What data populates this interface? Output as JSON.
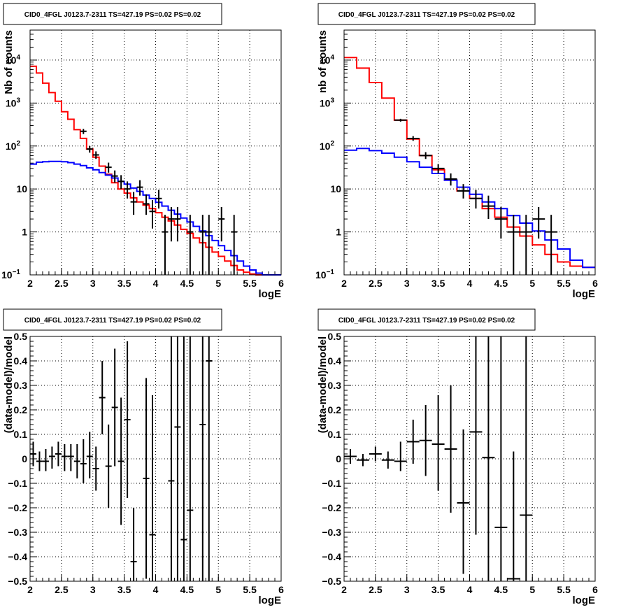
{
  "colors": {
    "total_model": "#ff0000",
    "source_model": "#0000ff",
    "data": "#000000"
  },
  "chart_data": [
    {
      "type": "line",
      "title": "CID0_4FGL J0123.7-2311 TS=427.19 PS=0.02 PS=0.02",
      "xlabel": "logE",
      "ylabel": "Nb of counts",
      "log_y": true,
      "xlim": [
        2,
        6
      ],
      "ylim": [
        0.1,
        50000
      ],
      "xticks": [
        "2",
        "2.5",
        "3",
        "3.5",
        "4",
        "4.5",
        "5",
        "5.5",
        "6"
      ],
      "yticks": [
        {
          "v": 0.1,
          "base": "10",
          "exp": "−1"
        },
        {
          "v": 1,
          "base": "1",
          "exp": ""
        },
        {
          "v": 10,
          "base": "10",
          "exp": ""
        },
        {
          "v": 100,
          "base": "10",
          "exp": "2"
        },
        {
          "v": 1000,
          "base": "10",
          "exp": "3"
        },
        {
          "v": 10000,
          "base": "10",
          "exp": "4"
        }
      ],
      "bin_width": 0.1,
      "series": [
        {
          "role": "total",
          "color": "#ff0000",
          "x_start": 2.0,
          "values": [
            7200,
            5000,
            2900,
            1750,
            1100,
            630,
            420,
            240,
            150,
            85,
            55,
            34,
            22,
            14,
            10,
            8,
            6.2,
            5,
            4.2,
            3.5,
            2.8,
            2.2,
            1.8,
            1.45,
            1.15,
            0.92,
            0.72,
            0.56,
            0.44,
            0.34,
            0.27,
            0.21,
            0.165,
            0.13,
            0.115,
            0.105,
            0.1,
            0.095,
            0.09,
            0.085
          ]
        },
        {
          "role": "source",
          "color": "#0000ff",
          "x_start": 2.0,
          "values": [
            38,
            42,
            43,
            44,
            44,
            43,
            41,
            38,
            35,
            31,
            28,
            24,
            21,
            18,
            15,
            13,
            10.5,
            8.8,
            7.2,
            6,
            4.9,
            4,
            3.2,
            2.6,
            2.1,
            1.7,
            1.35,
            1.05,
            0.82,
            0.63,
            0.48,
            0.37,
            0.28,
            0.21,
            0.16,
            0.13,
            0.11,
            0.1,
            0.1,
            0.1
          ]
        }
      ],
      "points": [
        {
          "x": 2.85,
          "y": 220,
          "lo": 190,
          "hi": 250
        },
        {
          "x": 2.95,
          "y": 85,
          "lo": 70,
          "hi": 100
        },
        {
          "x": 3.05,
          "y": 62,
          "lo": 50,
          "hi": 75
        },
        {
          "x": 3.25,
          "y": 32,
          "lo": 24,
          "hi": 41
        },
        {
          "x": 3.35,
          "y": 20,
          "lo": 14,
          "hi": 27
        },
        {
          "x": 3.45,
          "y": 15,
          "lo": 10,
          "hi": 21
        },
        {
          "x": 3.55,
          "y": 10,
          "lo": 6,
          "hi": 15
        },
        {
          "x": 3.65,
          "y": 5,
          "lo": 2.5,
          "hi": 8.5
        },
        {
          "x": 3.75,
          "y": 11,
          "lo": 7,
          "hi": 16
        },
        {
          "x": 3.85,
          "y": 4.5,
          "lo": 2.5,
          "hi": 7.5
        },
        {
          "x": 3.95,
          "y": 3,
          "lo": 1.2,
          "hi": 5.5
        },
        {
          "x": 4.05,
          "y": 6,
          "lo": 3.5,
          "hi": 9.5
        },
        {
          "x": 4.15,
          "y": 1,
          "lo": 0.1,
          "hi": 2.5
        },
        {
          "x": 4.25,
          "y": 2,
          "lo": 0.6,
          "hi": 3.8
        },
        {
          "x": 4.35,
          "y": 2,
          "lo": 0.6,
          "hi": 3.8
        },
        {
          "x": 4.55,
          "y": 1,
          "lo": 0.1,
          "hi": 2.5
        },
        {
          "x": 4.75,
          "y": 1,
          "lo": 0.1,
          "hi": 2.5
        },
        {
          "x": 4.85,
          "y": 1,
          "lo": 0.1,
          "hi": 2.5
        },
        {
          "x": 5.05,
          "y": 2,
          "lo": 0.6,
          "hi": 3.8
        },
        {
          "x": 5.25,
          "y": 1,
          "lo": 0.1,
          "hi": 2.5
        }
      ]
    },
    {
      "type": "line",
      "title": "CID0_4FGL J0123.7-2311 TS=427.19 PS=0.02 PS=0.02",
      "xlabel": "logE",
      "ylabel": "nb of counts",
      "log_y": true,
      "xlim": [
        2,
        6
      ],
      "ylim": [
        0.1,
        50000
      ],
      "xticks": [
        "2",
        "2.5",
        "3",
        "3.5",
        "4",
        "4.5",
        "5",
        "5.5",
        "6"
      ],
      "yticks": [
        {
          "v": 0.1,
          "base": "10",
          "exp": "−1"
        },
        {
          "v": 1,
          "base": "1",
          "exp": ""
        },
        {
          "v": 10,
          "base": "10",
          "exp": ""
        },
        {
          "v": 100,
          "base": "10",
          "exp": "2"
        },
        {
          "v": 1000,
          "base": "10",
          "exp": "3"
        },
        {
          "v": 10000,
          "base": "10",
          "exp": "4"
        }
      ],
      "bin_width": 0.2,
      "series": [
        {
          "role": "total",
          "color": "#ff0000",
          "x_start": 2.0,
          "values": [
            11500,
            6500,
            3000,
            1300,
            400,
            145,
            60,
            28,
            16,
            9,
            6,
            3.5,
            2.2,
            1.3,
            0.8,
            0.5,
            0.3,
            0.2,
            0.16,
            0.15
          ]
        },
        {
          "role": "source",
          "color": "#0000ff",
          "x_start": 2.0,
          "values": [
            80,
            88,
            78,
            68,
            55,
            43,
            32,
            23,
            16,
            11,
            7.5,
            5,
            3.5,
            2.4,
            1.6,
            1.05,
            0.65,
            0.4,
            0.22,
            0.15
          ]
        }
      ],
      "points": [
        {
          "x": 2.9,
          "y": 400,
          "lo": 370,
          "hi": 430
        },
        {
          "x": 3.1,
          "y": 150,
          "lo": 132,
          "hi": 170
        },
        {
          "x": 3.3,
          "y": 60,
          "lo": 50,
          "hi": 72
        },
        {
          "x": 3.5,
          "y": 30,
          "lo": 23,
          "hi": 38
        },
        {
          "x": 3.7,
          "y": 17,
          "lo": 12,
          "hi": 23
        },
        {
          "x": 3.9,
          "y": 9,
          "lo": 6,
          "hi": 13
        },
        {
          "x": 4.1,
          "y": 6,
          "lo": 3.5,
          "hi": 9.5
        },
        {
          "x": 4.3,
          "y": 4,
          "lo": 2,
          "hi": 7
        },
        {
          "x": 4.5,
          "y": 2,
          "lo": 0.7,
          "hi": 3.8
        },
        {
          "x": 4.7,
          "y": 1,
          "lo": 0.1,
          "hi": 2.5
        },
        {
          "x": 4.9,
          "y": 1,
          "lo": 0.1,
          "hi": 2.5
        },
        {
          "x": 5.1,
          "y": 2,
          "lo": 0.7,
          "hi": 3.8
        },
        {
          "x": 5.3,
          "y": 1,
          "lo": 0.1,
          "hi": 2.5
        }
      ]
    },
    {
      "type": "scatter",
      "title": "CID0_4FGL J0123.7-2311 TS=427.19 PS=0.02 PS=0.02",
      "xlabel": "logE",
      "ylabel": "(data-model)/model",
      "log_y": false,
      "xlim": [
        2,
        6
      ],
      "ylim": [
        -0.5,
        0.5
      ],
      "xticks": [
        "2",
        "2.5",
        "3",
        "3.5",
        "4",
        "4.5",
        "5",
        "5.5",
        "6"
      ],
      "yticks": [
        {
          "v": -0.5,
          "label": "−0.5"
        },
        {
          "v": -0.4,
          "label": "−0.4"
        },
        {
          "v": -0.3,
          "label": "−0.3"
        },
        {
          "v": -0.2,
          "label": "−0.2"
        },
        {
          "v": -0.1,
          "label": "−0.1"
        },
        {
          "v": 0,
          "label": "0"
        },
        {
          "v": 0.1,
          "label": "0.1"
        },
        {
          "v": 0.2,
          "label": "0.2"
        },
        {
          "v": 0.3,
          "label": "0.3"
        },
        {
          "v": 0.4,
          "label": "0.4"
        },
        {
          "v": 0.5,
          "label": "0.5"
        }
      ],
      "bin_width": 0.1,
      "points": [
        {
          "x": 2.05,
          "y": 0.02,
          "lo": -0.03,
          "hi": 0.07
        },
        {
          "x": 2.15,
          "y": -0.01,
          "lo": -0.05,
          "hi": 0.03
        },
        {
          "x": 2.25,
          "y": -0.01,
          "lo": -0.05,
          "hi": 0.04
        },
        {
          "x": 2.35,
          "y": 0.01,
          "lo": -0.04,
          "hi": 0.05
        },
        {
          "x": 2.45,
          "y": 0.02,
          "lo": -0.03,
          "hi": 0.07
        },
        {
          "x": 2.55,
          "y": 0.01,
          "lo": -0.05,
          "hi": 0.06
        },
        {
          "x": 2.65,
          "y": 0.01,
          "lo": -0.05,
          "hi": 0.06
        },
        {
          "x": 2.75,
          "y": -0.01,
          "lo": -0.08,
          "hi": 0.06
        },
        {
          "x": 2.85,
          "y": -0.02,
          "lo": -0.1,
          "hi": 0.08
        },
        {
          "x": 2.95,
          "y": 0.01,
          "lo": -0.08,
          "hi": 0.11
        },
        {
          "x": 3.05,
          "y": -0.04,
          "lo": -0.13,
          "hi": 0.05
        },
        {
          "x": 3.15,
          "y": 0.25,
          "lo": 0.1,
          "hi": 0.4
        },
        {
          "x": 3.25,
          "y": -0.03,
          "lo": -0.2,
          "hi": 0.14
        },
        {
          "x": 3.35,
          "y": 0.21,
          "lo": -0.03,
          "hi": 0.45
        },
        {
          "x": 3.45,
          "y": -0.01,
          "lo": -0.27,
          "hi": 0.25
        },
        {
          "x": 3.55,
          "y": 0.16,
          "lo": -0.16,
          "hi": 0.48
        },
        {
          "x": 3.65,
          "y": -0.42,
          "lo": -0.5,
          "hi": -0.2
        },
        {
          "x": 3.85,
          "y": -0.08,
          "lo": -0.49,
          "hi": 0.33
        },
        {
          "x": 3.95,
          "y": -0.31,
          "lo": -0.5,
          "hi": 0.26
        },
        {
          "x": 4.25,
          "y": -0.09,
          "lo": -0.5,
          "hi": 0.5
        },
        {
          "x": 4.35,
          "y": 0.13,
          "lo": -0.5,
          "hi": 0.5
        },
        {
          "x": 4.45,
          "y": -0.33,
          "lo": -0.5,
          "hi": 0.5
        },
        {
          "x": 4.55,
          "y": -0.21,
          "lo": -0.5,
          "hi": 0.5
        },
        {
          "x": 4.75,
          "y": 0.14,
          "lo": -0.5,
          "hi": 0.5
        },
        {
          "x": 4.85,
          "y": 0.4,
          "lo": -0.5,
          "hi": 0.5
        }
      ]
    },
    {
      "type": "scatter",
      "title": "CID0_4FGL J0123.7-2311 TS=427.19 PS=0.02 PS=0.02",
      "xlabel": "logE",
      "ylabel": "(data-model)/model",
      "log_y": false,
      "xlim": [
        2,
        6
      ],
      "ylim": [
        -0.5,
        0.5
      ],
      "xticks": [
        "2",
        "2.5",
        "3",
        "3.5",
        "4",
        "4.5",
        "5",
        "5.5",
        "6"
      ],
      "yticks": [
        {
          "v": -0.5,
          "label": "−0.5"
        },
        {
          "v": -0.4,
          "label": "−0.4"
        },
        {
          "v": -0.3,
          "label": "−0.3"
        },
        {
          "v": -0.2,
          "label": "−0.2"
        },
        {
          "v": -0.1,
          "label": "−0.1"
        },
        {
          "v": 0,
          "label": "0"
        },
        {
          "v": 0.1,
          "label": "0.1"
        },
        {
          "v": 0.2,
          "label": "0.2"
        },
        {
          "v": 0.3,
          "label": "0.3"
        },
        {
          "v": 0.4,
          "label": "0.4"
        },
        {
          "v": 0.5,
          "label": "0.5"
        }
      ],
      "bin_width": 0.2,
      "points": [
        {
          "x": 2.1,
          "y": 0.01,
          "lo": -0.02,
          "hi": 0.04
        },
        {
          "x": 2.3,
          "y": -0.005,
          "lo": -0.03,
          "hi": 0.02
        },
        {
          "x": 2.5,
          "y": 0.02,
          "lo": -0.01,
          "hi": 0.05
        },
        {
          "x": 2.7,
          "y": -0.005,
          "lo": -0.04,
          "hi": 0.03
        },
        {
          "x": 2.9,
          "y": -0.01,
          "lo": -0.05,
          "hi": 0.07
        },
        {
          "x": 3.1,
          "y": 0.07,
          "lo": -0.02,
          "hi": 0.16
        },
        {
          "x": 3.3,
          "y": 0.075,
          "lo": -0.07,
          "hi": 0.22
        },
        {
          "x": 3.5,
          "y": 0.06,
          "lo": -0.13,
          "hi": 0.26
        },
        {
          "x": 3.7,
          "y": 0.04,
          "lo": -0.22,
          "hi": 0.3
        },
        {
          "x": 3.9,
          "y": -0.18,
          "lo": -0.47,
          "hi": 0.12
        },
        {
          "x": 4.1,
          "y": 0.11,
          "lo": -0.31,
          "hi": 0.5
        },
        {
          "x": 4.3,
          "y": 0.005,
          "lo": -0.5,
          "hi": 0.5
        },
        {
          "x": 4.5,
          "y": -0.28,
          "lo": -0.5,
          "hi": 0.5
        },
        {
          "x": 4.7,
          "y": -0.49,
          "lo": -0.5,
          "hi": 0.03
        },
        {
          "x": 4.9,
          "y": -0.23,
          "lo": -0.5,
          "hi": 0.5
        }
      ]
    }
  ]
}
